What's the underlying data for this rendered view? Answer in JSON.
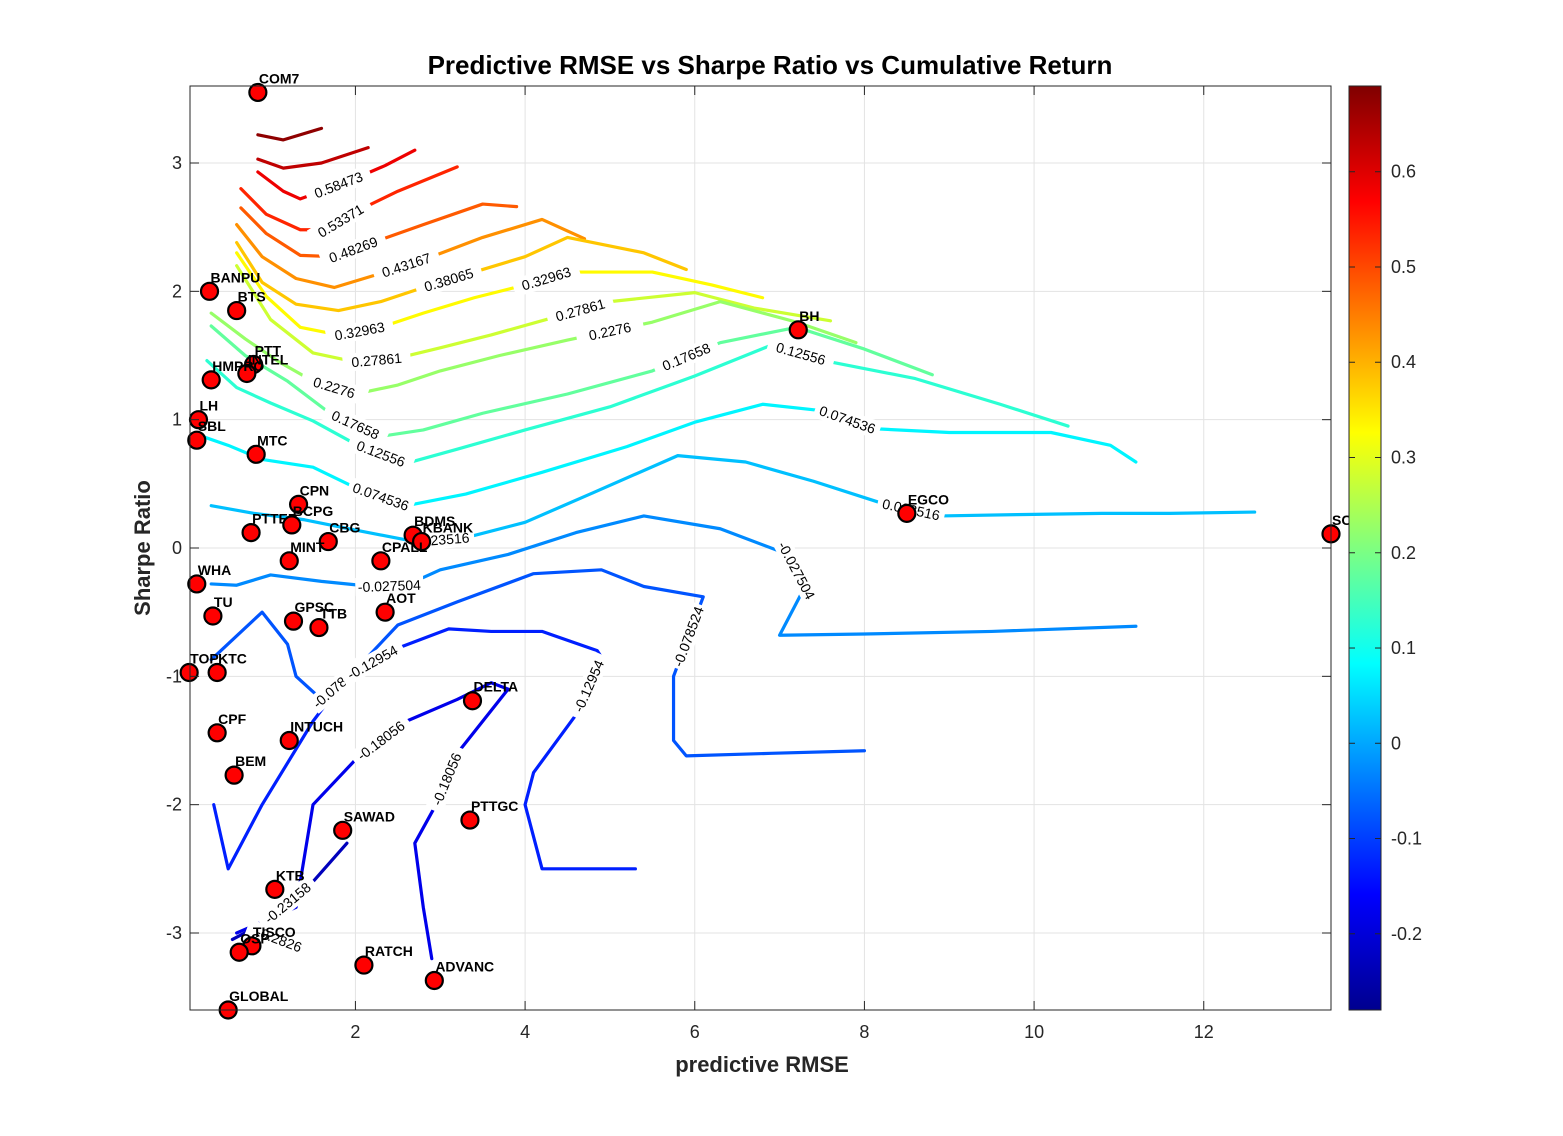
{
  "chart_data": {
    "type": "scatter",
    "title": "Predictive RMSE vs Sharpe Ratio vs Cumulative Return",
    "xlabel": "predictive RMSE",
    "ylabel": "Sharpe Ratio",
    "xlim": [
      0.05,
      13.5
    ],
    "ylim": [
      -3.6,
      3.6
    ],
    "xticks": [
      "2",
      "4",
      "6",
      "8",
      "10",
      "12"
    ],
    "yticks": [
      "-3",
      "-2",
      "-1",
      "0",
      "1",
      "2",
      "3"
    ],
    "grid": true,
    "marker_color": "#ff0000",
    "colorbar": {
      "colormap": "jet",
      "range": [
        -0.28,
        0.69
      ],
      "ticks": [
        "-0.2",
        "-0.1",
        "0",
        "0.1",
        "0.2",
        "0.3",
        "0.4",
        "0.5",
        "0.6"
      ]
    },
    "points": [
      {
        "label": "COM7",
        "x": 0.85,
        "y": 3.55
      },
      {
        "label": "BANPU",
        "x": 0.28,
        "y": 2.0
      },
      {
        "label": "BTS",
        "x": 0.6,
        "y": 1.85
      },
      {
        "label": "PTT",
        "x": 0.8,
        "y": 1.43
      },
      {
        "label": "INTEL",
        "x": 0.72,
        "y": 1.36
      },
      {
        "label": "HMPRO",
        "x": 0.3,
        "y": 1.31
      },
      {
        "label": "LH",
        "x": 0.15,
        "y": 1.0
      },
      {
        "label": "SBL",
        "x": 0.13,
        "y": 0.84
      },
      {
        "label": "MTC",
        "x": 0.83,
        "y": 0.73
      },
      {
        "label": "CPN",
        "x": 1.33,
        "y": 0.34
      },
      {
        "label": "PTTEP",
        "x": 0.77,
        "y": 0.12
      },
      {
        "label": "BCPG",
        "x": 1.25,
        "y": 0.18
      },
      {
        "label": "CBG",
        "x": 1.68,
        "y": 0.05
      },
      {
        "label": "BDMS",
        "x": 2.68,
        "y": 0.1
      },
      {
        "label": "KBANK",
        "x": 2.78,
        "y": 0.05
      },
      {
        "label": "MINT",
        "x": 1.22,
        "y": -0.1
      },
      {
        "label": "CPALL",
        "x": 2.3,
        "y": -0.1
      },
      {
        "label": "WHA",
        "x": 0.13,
        "y": -0.28
      },
      {
        "label": "TU",
        "x": 0.32,
        "y": -0.53
      },
      {
        "label": "GPSC",
        "x": 1.27,
        "y": -0.57
      },
      {
        "label": "TTB",
        "x": 1.57,
        "y": -0.62
      },
      {
        "label": "AOT",
        "x": 2.35,
        "y": -0.5
      },
      {
        "label": "TOP",
        "x": 0.04,
        "y": -0.97
      },
      {
        "label": "KTC",
        "x": 0.37,
        "y": -0.97
      },
      {
        "label": "DELTA",
        "x": 3.38,
        "y": -1.19
      },
      {
        "label": "CPF",
        "x": 0.37,
        "y": -1.44
      },
      {
        "label": "INTUCH",
        "x": 1.22,
        "y": -1.5
      },
      {
        "label": "BEM",
        "x": 0.57,
        "y": -1.77
      },
      {
        "label": "SAWAD",
        "x": 1.85,
        "y": -2.2
      },
      {
        "label": "PTTGC",
        "x": 3.35,
        "y": -2.12
      },
      {
        "label": "KTB",
        "x": 1.05,
        "y": -2.66
      },
      {
        "label": "TISCO",
        "x": 0.78,
        "y": -3.1
      },
      {
        "label": "OSP",
        "x": 0.63,
        "y": -3.15
      },
      {
        "label": "RATCH",
        "x": 2.1,
        "y": -3.25
      },
      {
        "label": "ADVANC",
        "x": 2.93,
        "y": -3.37
      },
      {
        "label": "GLOBAL",
        "x": 0.5,
        "y": -3.6
      },
      {
        "label": "EGCO",
        "x": 8.5,
        "y": 0.27
      },
      {
        "label": "BH",
        "x": 7.22,
        "y": 1.7
      },
      {
        "label": "SCC",
        "x": 13.5,
        "y": 0.11
      }
    ],
    "contours": [
      {
        "level": 0.6757,
        "label": "",
        "x": [
          0.85,
          1.15,
          1.6
        ],
        "y": [
          3.22,
          3.18,
          3.27
        ]
      },
      {
        "level": 0.63,
        "label": "",
        "x": [
          0.85,
          1.15,
          1.6,
          2.15
        ],
        "y": [
          3.03,
          2.96,
          3.0,
          3.12
        ]
      },
      {
        "level": 0.58473,
        "label": "0.58473",
        "x": [
          0.85,
          1.15,
          1.35,
          1.6,
          2.0,
          2.35,
          2.7
        ],
        "y": [
          2.93,
          2.78,
          2.72,
          2.78,
          2.88,
          2.98,
          3.1
        ]
      },
      {
        "level": 0.53371,
        "label": "0.53371",
        "x": [
          0.65,
          0.95,
          1.35,
          1.65,
          2.0,
          2.5,
          3.2
        ],
        "y": [
          2.8,
          2.6,
          2.48,
          2.48,
          2.62,
          2.78,
          2.97
        ]
      },
      {
        "level": 0.48269,
        "label": "0.48269",
        "x": [
          0.65,
          0.95,
          1.35,
          1.75,
          2.2,
          2.8,
          3.5,
          3.9
        ],
        "y": [
          2.65,
          2.45,
          2.28,
          2.27,
          2.38,
          2.52,
          2.68,
          2.66
        ]
      },
      {
        "level": 0.43167,
        "label": "0.43167",
        "x": [
          0.6,
          0.9,
          1.3,
          1.75,
          2.3,
          2.9,
          3.5,
          4.2,
          4.7
        ],
        "y": [
          2.52,
          2.27,
          2.1,
          2.03,
          2.14,
          2.27,
          2.42,
          2.56,
          2.41
        ]
      },
      {
        "level": 0.38065,
        "label": "0.38065",
        "x": [
          0.6,
          0.9,
          1.3,
          1.8,
          2.3,
          2.8,
          3.4,
          4.0,
          4.5,
          5.4,
          5.9
        ],
        "y": [
          2.38,
          2.07,
          1.9,
          1.85,
          1.92,
          2.03,
          2.15,
          2.27,
          2.42,
          2.3,
          2.17
        ]
      },
      {
        "level": 0.32963,
        "label": "0.32963",
        "x": [
          0.6,
          0.95,
          1.35,
          1.8,
          2.3,
          2.8,
          3.4,
          4.0,
          4.5,
          5.5,
          6.2,
          6.8
        ],
        "y": [
          2.3,
          1.96,
          1.72,
          1.66,
          1.72,
          1.83,
          1.95,
          2.05,
          2.15,
          2.15,
          2.05,
          1.95
        ]
      },
      {
        "level": 0.27861,
        "label": "0.27861",
        "x": [
          0.6,
          1.0,
          1.5,
          2.0,
          2.5,
          3.0,
          3.6,
          4.3,
          5.0,
          6.0,
          6.7,
          7.6
        ],
        "y": [
          2.2,
          1.78,
          1.52,
          1.45,
          1.48,
          1.56,
          1.66,
          1.79,
          1.92,
          1.99,
          1.87,
          1.77
        ]
      },
      {
        "level": 0.2276,
        "label": "0.2276",
        "x": [
          0.3,
          0.7,
          1.1,
          1.5,
          2.0,
          2.5,
          3.0,
          3.7,
          4.5,
          5.5,
          6.3,
          7.2,
          7.9
        ],
        "y": [
          1.83,
          1.63,
          1.45,
          1.3,
          1.2,
          1.27,
          1.38,
          1.5,
          1.62,
          1.76,
          1.92,
          1.76,
          1.6
        ]
      },
      {
        "level": 0.17658,
        "label": "0.17658",
        "x": [
          0.3,
          0.7,
          1.2,
          1.7,
          2.3,
          2.8,
          3.5,
          4.5,
          5.5,
          6.3,
          7.2,
          8.0,
          8.8
        ],
        "y": [
          1.73,
          1.5,
          1.3,
          1.05,
          0.87,
          0.92,
          1.05,
          1.2,
          1.38,
          1.6,
          1.72,
          1.55,
          1.35
        ]
      },
      {
        "level": 0.12556,
        "label": "0.12556",
        "x": [
          0.25,
          0.6,
          1.0,
          1.5,
          2.0,
          2.6,
          3.2,
          4.0,
          5.0,
          6.0,
          6.9,
          7.6,
          8.6,
          9.6,
          10.4
        ],
        "y": [
          1.46,
          1.25,
          1.13,
          0.99,
          0.81,
          0.66,
          0.77,
          0.92,
          1.1,
          1.34,
          1.58,
          1.45,
          1.32,
          1.12,
          0.95
        ]
      },
      {
        "level": 0.074536,
        "label": "0.074536",
        "x": [
          0.15,
          0.5,
          0.9,
          1.5,
          2.0,
          2.6,
          3.3,
          4.2,
          5.2,
          6.0,
          6.8,
          7.5,
          8.1,
          9.0,
          10.2,
          10.9,
          11.2
        ],
        "y": [
          0.88,
          0.8,
          0.69,
          0.63,
          0.47,
          0.33,
          0.42,
          0.59,
          0.79,
          0.98,
          1.12,
          1.07,
          0.93,
          0.9,
          0.9,
          0.8,
          0.67
        ]
      },
      {
        "level": 0.023516,
        "label": "0.023516",
        "x": [
          0.3,
          0.8,
          1.4,
          2.0,
          2.7,
          3.3,
          4.0,
          4.8,
          5.8,
          6.6,
          7.4,
          8.2,
          8.9,
          9.8,
          10.8,
          11.6,
          12.6
        ],
        "y": [
          0.33,
          0.27,
          0.22,
          0.14,
          0.05,
          0.08,
          0.2,
          0.43,
          0.72,
          0.67,
          0.52,
          0.35,
          0.25,
          0.26,
          0.27,
          0.27,
          0.28
        ]
      },
      {
        "level": -0.027504,
        "label": "-0.027504",
        "x": [
          0.3,
          0.6,
          1.0,
          1.6,
          2.2,
          2.6,
          3.0,
          3.8,
          4.6,
          5.4,
          6.3,
          7.1,
          7.3,
          7.0,
          8.0,
          9.5,
          11.2
        ],
        "y": [
          -0.28,
          -0.29,
          -0.21,
          -0.26,
          -0.3,
          -0.29,
          -0.17,
          -0.05,
          0.12,
          0.25,
          0.15,
          -0.05,
          -0.3,
          -0.68,
          -0.67,
          -0.65,
          -0.61
        ]
      },
      {
        "level": -0.078524,
        "label": "-0.078524",
        "x": [
          0.3,
          0.9,
          1.2,
          1.3,
          1.6,
          2.0,
          2.5,
          3.2,
          4.1,
          4.9,
          5.4,
          6.1,
          5.75,
          5.75,
          5.9,
          6.9,
          8.0
        ],
        "y": [
          -0.87,
          -0.5,
          -0.75,
          -1.0,
          -1.18,
          -0.95,
          -0.6,
          -0.42,
          -0.2,
          -0.17,
          -0.3,
          -0.38,
          -1.0,
          -1.5,
          -1.62,
          -1.6,
          -1.58
        ]
      },
      {
        "level": -0.12954,
        "label": "-0.12954",
        "x": [
          0.33,
          0.5,
          0.9,
          1.5,
          1.9,
          2.5,
          3.1,
          3.6,
          4.2,
          4.85,
          4.9,
          4.6,
          4.1,
          4.0,
          4.2,
          5.3
        ],
        "y": [
          -2.0,
          -2.5,
          -2.0,
          -1.35,
          -1.0,
          -0.78,
          -0.63,
          -0.65,
          -0.65,
          -0.8,
          -0.85,
          -1.3,
          -1.75,
          -2.0,
          -2.5,
          -2.5
        ]
      },
      {
        "level": -0.18056,
        "label": "-0.18056",
        "x": [
          0.6,
          1.3,
          1.5,
          2.0,
          2.6,
          3.2,
          3.6,
          3.8,
          3.2,
          2.95,
          2.7,
          2.8,
          2.9
        ],
        "y": [
          -3.0,
          -2.8,
          -2.0,
          -1.65,
          -1.35,
          -1.18,
          -1.05,
          -1.1,
          -1.6,
          -2.0,
          -2.3,
          -2.8,
          -3.2
        ]
      },
      {
        "level": -0.23158,
        "label": "-0.23158",
        "x": [
          0.55,
          0.9,
          1.5,
          1.9
        ],
        "y": [
          -3.05,
          -2.93,
          -2.6,
          -2.3
        ]
      },
      {
        "level": -0.2826,
        "label": "-0.2826",
        "x": [
          0.55,
          0.9,
          1.3
        ],
        "y": [
          -3.15,
          -3.0,
          -3.1
        ]
      }
    ]
  }
}
